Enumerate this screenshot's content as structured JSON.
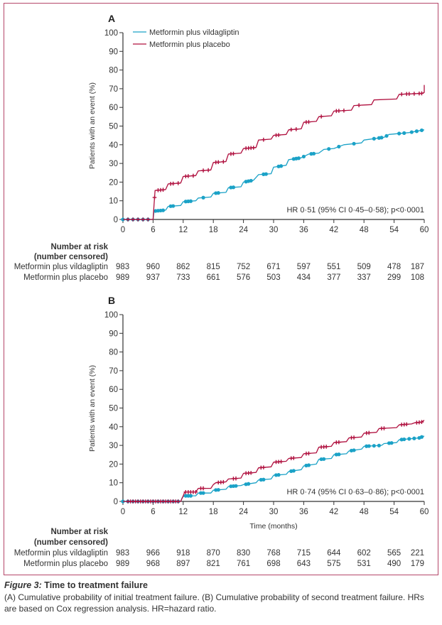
{
  "colors": {
    "vildagliptin": "#1ba2c7",
    "placebo": "#b0103f",
    "frame": "#b5476a",
    "axis": "#333333"
  },
  "chart_data": [
    {
      "type": "line",
      "panel_label": "A",
      "title": "",
      "xlabel": "",
      "ylabel": "Patients with an event (%)",
      "xlim": [
        0,
        60
      ],
      "ylim": [
        0,
        100
      ],
      "x_ticks": [
        0,
        6,
        12,
        18,
        24,
        30,
        36,
        42,
        48,
        54,
        60
      ],
      "y_ticks": [
        0,
        10,
        20,
        30,
        40,
        50,
        60,
        70,
        80,
        90,
        100
      ],
      "grid": false,
      "legend": {
        "placement": "top-left",
        "entries": [
          "Metformin plus vildagliptin",
          "Metformin plus placebo"
        ]
      },
      "annotation": "HR 0·51 (95% CI 0·45–0·58); p<0·0001",
      "series": [
        {
          "name": "Metformin plus vildagliptin",
          "color_key": "vildagliptin",
          "marker": "dot",
          "step_points": [
            [
              0,
              0
            ],
            [
              6,
              0
            ],
            [
              6.2,
              4.5
            ],
            [
              8.5,
              5
            ],
            [
              9,
              7
            ],
            [
              11.5,
              7.5
            ],
            [
              12,
              9.5
            ],
            [
              14.5,
              10
            ],
            [
              15,
              11.5
            ],
            [
              17.5,
              12
            ],
            [
              18,
              14
            ],
            [
              20.5,
              14.5
            ],
            [
              21,
              17
            ],
            [
              23.5,
              17.5
            ],
            [
              24,
              20
            ],
            [
              26,
              21
            ],
            [
              27,
              24
            ],
            [
              29.5,
              24.5
            ],
            [
              30,
              28
            ],
            [
              32.5,
              29
            ],
            [
              33,
              32
            ],
            [
              35.5,
              33
            ],
            [
              37,
              35
            ],
            [
              39,
              35.5
            ],
            [
              40,
              37.5
            ],
            [
              42,
              38
            ],
            [
              44,
              40
            ],
            [
              47.5,
              41
            ],
            [
              48,
              42.5
            ],
            [
              52,
              44
            ],
            [
              53,
              45.5
            ],
            [
              57,
              46.5
            ],
            [
              60,
              48
            ]
          ],
          "censor_x": [
            0,
            1,
            2,
            3,
            4,
            5,
            6.5,
            7,
            7.5,
            8,
            9.5,
            10,
            12.5,
            13,
            13.5,
            16,
            18.5,
            19,
            21.5,
            22,
            24.5,
            25,
            25.5,
            28,
            28.5,
            31,
            31.5,
            34,
            34.5,
            35,
            36,
            37.5,
            38,
            41,
            43,
            46,
            50,
            51,
            51.5,
            52.5,
            55,
            56,
            57.5,
            58.5,
            59.5
          ]
        },
        {
          "name": "Metformin plus placebo",
          "color_key": "placebo",
          "marker": "plus",
          "step_points": [
            [
              0,
              0
            ],
            [
              6,
              0
            ],
            [
              6.2,
              8
            ],
            [
              6.4,
              15.5
            ],
            [
              8.5,
              16
            ],
            [
              9,
              19
            ],
            [
              11.5,
              19.5
            ],
            [
              12,
              23
            ],
            [
              14.5,
              23.5
            ],
            [
              15,
              26
            ],
            [
              17.5,
              26.5
            ],
            [
              18,
              30.5
            ],
            [
              20.5,
              31
            ],
            [
              21,
              35
            ],
            [
              23.5,
              35.5
            ],
            [
              24,
              38
            ],
            [
              26.5,
              38.5
            ],
            [
              27,
              42.5
            ],
            [
              29.5,
              43
            ],
            [
              30,
              45
            ],
            [
              32.5,
              45.5
            ],
            [
              33,
              48
            ],
            [
              35.5,
              48.5
            ],
            [
              36,
              52
            ],
            [
              38.5,
              52.5
            ],
            [
              39,
              55
            ],
            [
              41.5,
              55.5
            ],
            [
              42,
              58
            ],
            [
              45.5,
              58.5
            ],
            [
              46,
              61
            ],
            [
              49.5,
              61.5
            ],
            [
              50,
              64
            ],
            [
              54.5,
              64.5
            ],
            [
              55,
              67
            ],
            [
              59.5,
              67.5
            ],
            [
              60,
              68
            ],
            [
              60,
              72
            ]
          ],
          "censor_x": [
            1,
            2,
            3,
            4,
            5,
            6.3,
            7,
            7.5,
            8,
            9.5,
            10,
            11,
            12.5,
            13,
            14,
            16,
            17,
            18.5,
            19,
            20,
            21.5,
            22,
            24.5,
            25,
            25.5,
            26,
            28,
            30.5,
            31,
            33.5,
            34.5,
            36.5,
            37,
            39.5,
            42.5,
            43,
            44,
            47,
            55.5,
            56.5,
            57,
            58,
            59,
            59.5
          ]
        }
      ],
      "number_at_risk": {
        "heading_line1": "Number at risk",
        "heading_line2": "(number censored)",
        "rows": [
          {
            "label": "Metformin plus vildagliptin",
            "values": [
              "983",
              "960",
              "862",
              "815",
              "752",
              "671",
              "597",
              "551",
              "509",
              "478",
              "187"
            ]
          },
          {
            "label": "Metformin plus placebo",
            "values": [
              "989",
              "937",
              "733",
              "661",
              "576",
              "503",
              "434",
              "377",
              "337",
              "299",
              "108"
            ]
          }
        ]
      }
    },
    {
      "type": "line",
      "panel_label": "B",
      "title": "",
      "xlabel": "Time (months)",
      "ylabel": "Patients with an event (%)",
      "xlim": [
        0,
        60
      ],
      "ylim": [
        0,
        100
      ],
      "x_ticks": [
        0,
        6,
        12,
        18,
        24,
        30,
        36,
        42,
        48,
        54,
        60
      ],
      "y_ticks": [
        0,
        10,
        20,
        30,
        40,
        50,
        60,
        70,
        80,
        90,
        100
      ],
      "grid": false,
      "annotation": "HR 0·74 (95% CI 0·63–0·86); p<0·0001",
      "series": [
        {
          "name": "Metformin plus vildagliptin",
          "color_key": "vildagliptin",
          "marker": "dot",
          "step_points": [
            [
              0,
              0
            ],
            [
              11.5,
              0
            ],
            [
              11.8,
              2
            ],
            [
              12.2,
              3
            ],
            [
              14.5,
              3
            ],
            [
              15,
              4.5
            ],
            [
              17.5,
              4.5
            ],
            [
              18,
              6
            ],
            [
              20.5,
              6.5
            ],
            [
              21,
              8
            ],
            [
              23.5,
              8.5
            ],
            [
              24,
              9
            ],
            [
              26.5,
              10
            ],
            [
              27,
              11.5
            ],
            [
              29.5,
              12
            ],
            [
              30,
              14
            ],
            [
              32.5,
              14.5
            ],
            [
              33,
              16
            ],
            [
              35.5,
              17
            ],
            [
              36,
              19
            ],
            [
              38.5,
              20
            ],
            [
              39,
              22.5
            ],
            [
              41.5,
              23
            ],
            [
              42,
              25
            ],
            [
              44.5,
              25.5
            ],
            [
              45,
              27
            ],
            [
              47.5,
              28
            ],
            [
              48,
              29.5
            ],
            [
              51.5,
              30
            ],
            [
              52,
              31
            ],
            [
              54.5,
              31.5
            ],
            [
              55,
              33
            ],
            [
              59,
              34
            ],
            [
              60,
              35
            ]
          ],
          "censor_x": [
            0,
            1,
            2,
            3,
            4,
            5,
            6,
            7,
            8,
            9,
            10,
            11,
            12.5,
            13,
            13.5,
            15.5,
            16,
            18.5,
            19,
            21.5,
            22,
            22.5,
            24.5,
            25,
            27.5,
            28,
            30.5,
            31,
            33.5,
            34,
            36.5,
            37,
            39.5,
            40,
            42.5,
            43,
            45.5,
            46,
            48.5,
            49,
            50,
            51,
            53,
            53.5,
            55.5,
            56,
            57,
            58,
            59,
            59.5
          ]
        },
        {
          "name": "Metformin plus placebo",
          "color_key": "placebo",
          "marker": "plus",
          "step_points": [
            [
              0,
              0
            ],
            [
              11.5,
              0
            ],
            [
              12,
              3
            ],
            [
              12.3,
              5
            ],
            [
              14.5,
              5
            ],
            [
              15,
              7
            ],
            [
              17.5,
              7
            ],
            [
              18,
              9
            ],
            [
              18.5,
              10
            ],
            [
              20.5,
              10.5
            ],
            [
              21,
              12
            ],
            [
              23.5,
              12.5
            ],
            [
              24,
              15
            ],
            [
              26.5,
              15.5
            ],
            [
              27,
              18
            ],
            [
              29.5,
              18.5
            ],
            [
              30,
              21
            ],
            [
              32.5,
              21.5
            ],
            [
              33,
              23
            ],
            [
              35.5,
              23.5
            ],
            [
              36,
              25.5
            ],
            [
              38.5,
              26
            ],
            [
              39,
              29
            ],
            [
              41.5,
              29.5
            ],
            [
              42,
              31.5
            ],
            [
              44.5,
              32
            ],
            [
              45,
              34
            ],
            [
              47.5,
              34.5
            ],
            [
              48,
              36.5
            ],
            [
              50.5,
              37
            ],
            [
              51,
              39
            ],
            [
              54.5,
              39.5
            ],
            [
              55,
              41
            ],
            [
              57.5,
              41.5
            ],
            [
              58,
              42
            ],
            [
              59.5,
              42.5
            ],
            [
              60,
              43.5
            ]
          ],
          "censor_x": [
            1,
            1.5,
            2,
            2.5,
            3,
            3.5,
            4,
            4.5,
            5,
            5.5,
            6,
            6.5,
            7,
            7.5,
            8,
            8.5,
            9,
            9.5,
            10,
            10.5,
            11,
            12.5,
            13,
            13.5,
            14,
            14.5,
            15.5,
            16,
            19,
            19.5,
            20,
            22,
            22.5,
            24.5,
            25,
            25.5,
            27.5,
            28,
            30.5,
            31,
            31.5,
            33.5,
            34,
            36.5,
            37,
            39.5,
            40,
            40.5,
            42.5,
            43,
            45.5,
            46,
            48.5,
            49,
            51.5,
            52,
            55.5,
            56,
            56.5,
            58.5,
            59,
            59.5
          ]
        }
      ],
      "number_at_risk": {
        "heading_line1": "Number at risk",
        "heading_line2": "(number censored)",
        "rows": [
          {
            "label": "Metformin plus vildagliptin",
            "values": [
              "983",
              "966",
              "918",
              "870",
              "830",
              "768",
              "715",
              "644",
              "602",
              "565",
              "221"
            ]
          },
          {
            "label": "Metformin plus placebo",
            "values": [
              "989",
              "968",
              "897",
              "821",
              "761",
              "698",
              "643",
              "575",
              "531",
              "490",
              "179"
            ]
          }
        ]
      }
    }
  ],
  "caption": {
    "figure_number": "Figure 3:",
    "title": "Time to treatment failure",
    "text": "(A) Cumulative probability of initial treatment failure. (B) Cumulative probability of second treatment failure. HRs are based on Cox regression analysis. HR=hazard ratio."
  }
}
